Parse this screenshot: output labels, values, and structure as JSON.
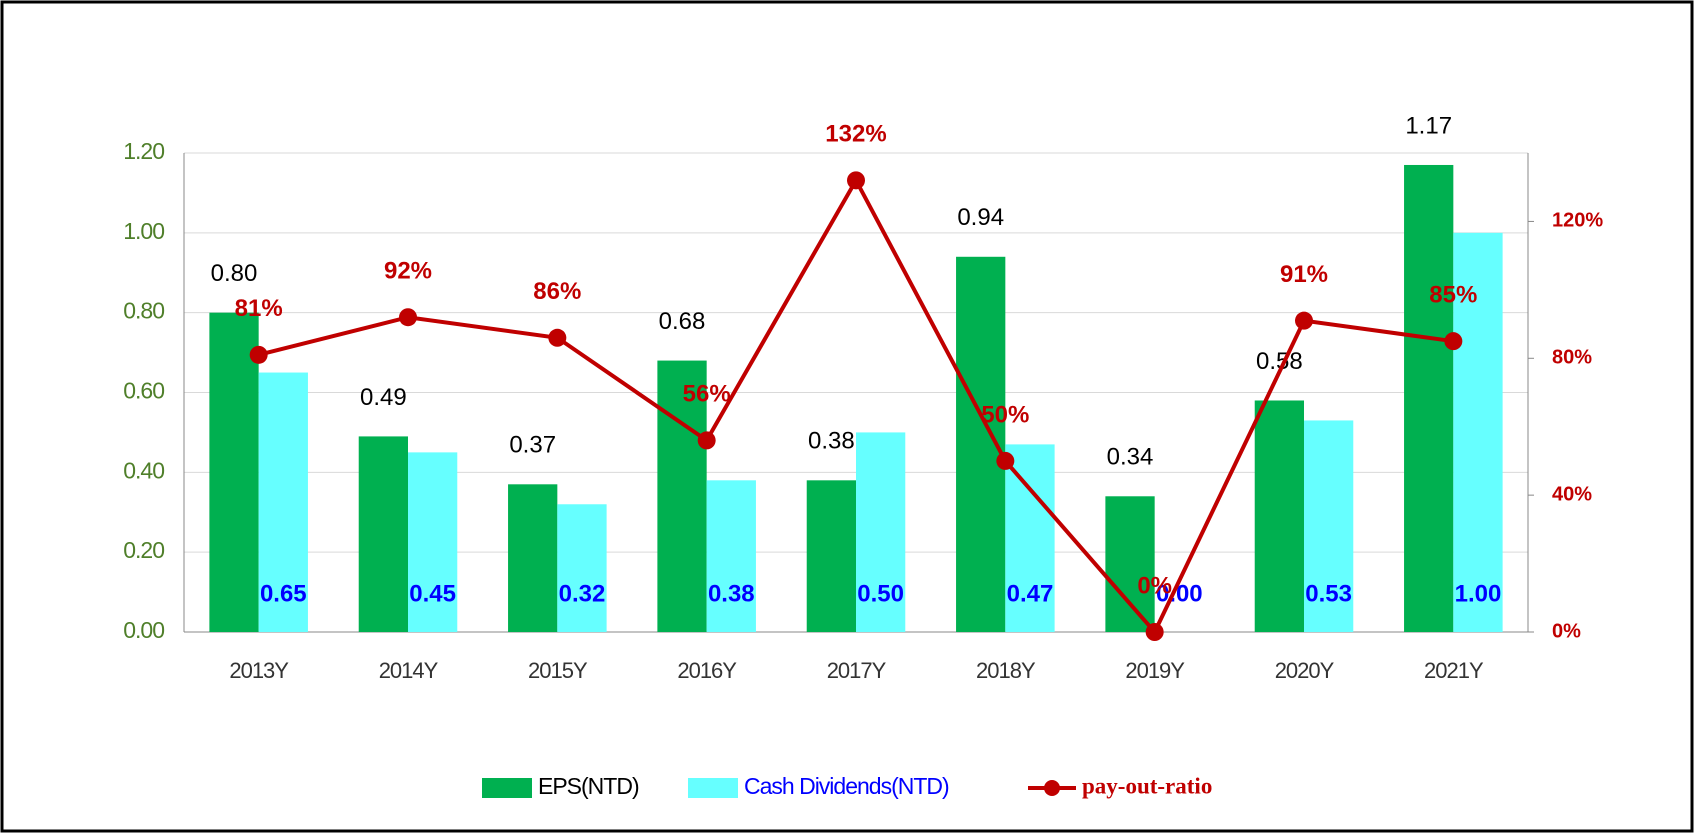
{
  "chart_data": {
    "type": "bar-line",
    "categories": [
      "2013Y",
      "2014Y",
      "2015Y",
      "2016Y",
      "2017Y",
      "2018Y",
      "2019Y",
      "2020Y",
      "2021Y"
    ],
    "series": [
      {
        "name": "EPS(NTD)",
        "color": "#00b050",
        "values": [
          0.8,
          0.49,
          0.37,
          0.68,
          0.38,
          0.94,
          0.34,
          0.58,
          1.17
        ],
        "value_labels": [
          "0.80",
          "0.49",
          "0.37",
          "0.68",
          "0.38",
          "0.94",
          "0.34",
          "0.58",
          "1.17"
        ]
      },
      {
        "name": "Cash Dividends(NTD)",
        "color": "#66ffff",
        "values": [
          0.65,
          0.45,
          0.32,
          0.38,
          0.5,
          0.47,
          0.0,
          0.53,
          1.0
        ],
        "value_labels": [
          "0.65",
          "0.45",
          "0.32",
          "0.38",
          "0.50",
          "0.47",
          "0.00",
          "0.53",
          "1.00"
        ]
      },
      {
        "name": "pay-out-ratio",
        "color": "#c00000",
        "axis": "y2",
        "values": [
          81,
          92,
          86,
          56,
          132,
          50,
          0,
          91,
          85
        ],
        "value_labels": [
          "81%",
          "92%",
          "86%",
          "56%",
          "132%",
          "50%",
          "0%",
          "91%",
          "85%"
        ]
      }
    ],
    "ylim": [
      0,
      1.2
    ],
    "yticks": [
      {
        "value": 0,
        "label": "0.00"
      },
      {
        "value": 0.2,
        "label": "0.20"
      },
      {
        "value": 0.4,
        "label": "0.40"
      },
      {
        "value": 0.6,
        "label": "0.60"
      },
      {
        "value": 0.8,
        "label": "0.80"
      },
      {
        "value": 1.0,
        "label": "1.00"
      },
      {
        "value": 1.2,
        "label": "1.20"
      }
    ],
    "y2lim": [
      0,
      140
    ],
    "y2ticks": [
      {
        "value": 0,
        "label": "0%"
      },
      {
        "value": 40,
        "label": "40%"
      },
      {
        "value": 80,
        "label": "80%"
      },
      {
        "value": 120,
        "label": "120%"
      }
    ],
    "grid": true,
    "legend": "bottom"
  }
}
